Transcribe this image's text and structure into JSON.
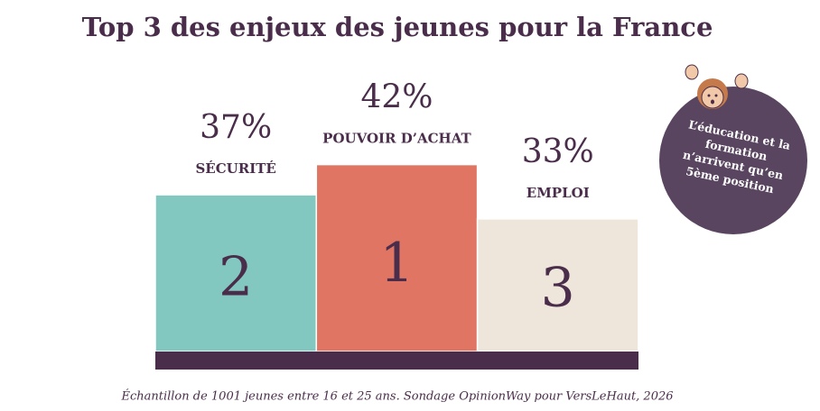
{
  "chart_data": {
    "type": "bar",
    "title": "Top 3 des enjeux des jeunes pour la France",
    "categories": [
      "SÉCURITÉ",
      "POUVOIR D’ACHAT",
      "EMPLOI"
    ],
    "values": [
      37,
      42,
      33
    ],
    "value_labels": [
      "37%",
      "42%",
      "33%"
    ],
    "ranks": [
      "2",
      "1",
      "3"
    ],
    "colors": [
      "#82c8c0",
      "#e07563",
      "#eee6da"
    ],
    "annotation": [
      "L’éducation et la",
      "formation",
      "n’arrivent qu’en",
      "5ème position"
    ],
    "source": "Échantillon de 1001 jeunes entre 16 et 25 ans. Sondage OpinionWay pour VersLeHaut, 2026"
  }
}
